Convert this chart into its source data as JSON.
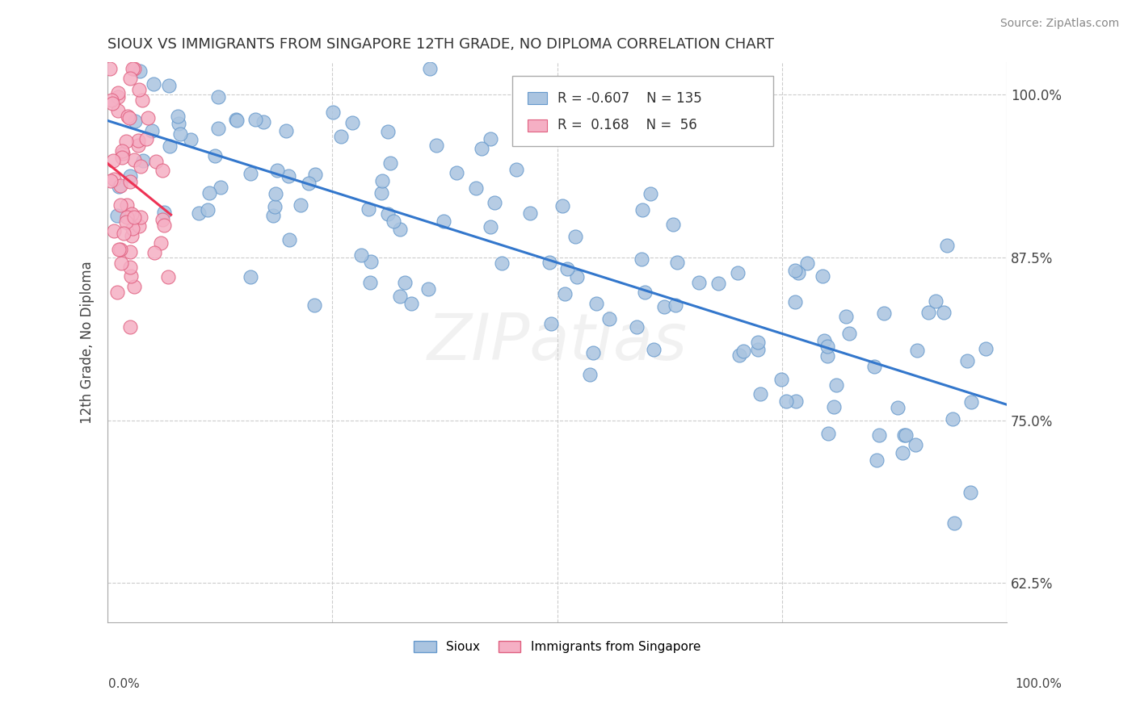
{
  "title": "SIOUX VS IMMIGRANTS FROM SINGAPORE 12TH GRADE, NO DIPLOMA CORRELATION CHART",
  "source": "Source: ZipAtlas.com",
  "ylabel": "12th Grade, No Diploma",
  "legend_label_1": "Sioux",
  "legend_label_2": "Immigrants from Singapore",
  "watermark": "ZIPatlas",
  "R_sioux": "-0.607",
  "N_sioux": "135",
  "R_immigrants": "0.168",
  "N_immigrants": "56",
  "sioux_color": "#aac4e0",
  "sioux_edge_color": "#6699cc",
  "immigrants_color": "#f5afc4",
  "immigrants_edge_color": "#e06080",
  "regression_sioux_color": "#3377cc",
  "regression_immigrants_color": "#ee3355",
  "xlim": [
    0.0,
    1.0
  ],
  "ylim": [
    0.595,
    1.025
  ],
  "yticks": [
    0.625,
    0.75,
    0.875,
    1.0
  ],
  "ytick_labels": [
    "62.5%",
    "75.0%",
    "87.5%",
    "100.0%"
  ]
}
